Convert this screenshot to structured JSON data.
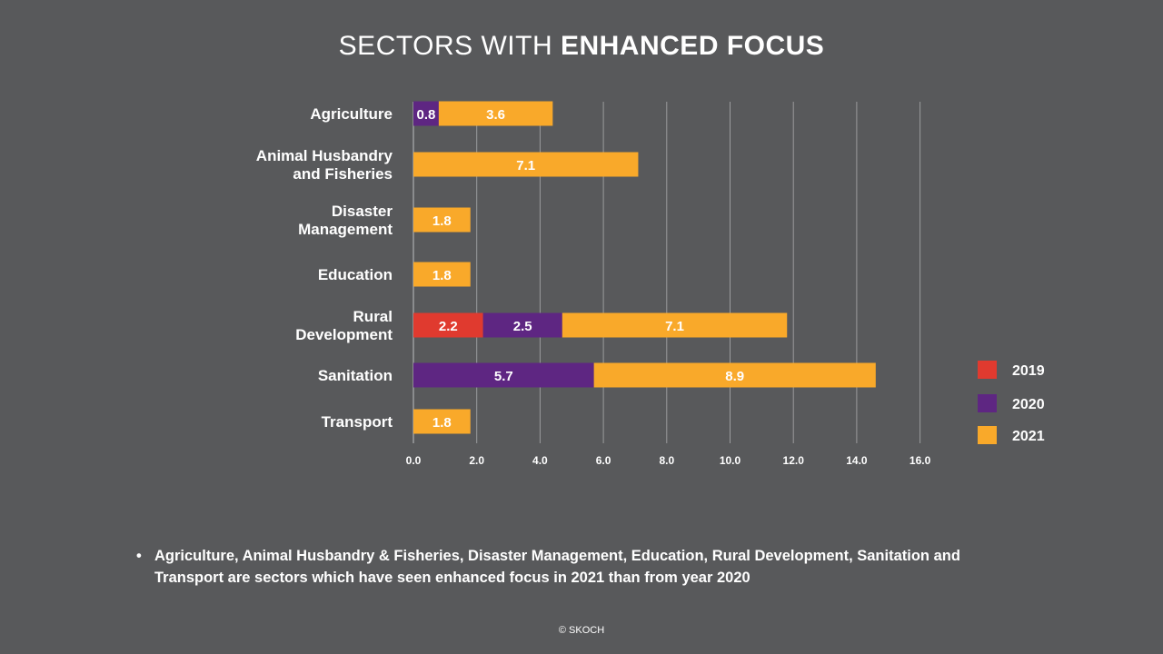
{
  "header": {
    "title_light": "SECTORS WITH ",
    "title_bold": "ENHANCED FOCUS"
  },
  "chart_data": {
    "type": "bar",
    "orientation": "horizontal",
    "stacked": true,
    "categories": [
      [
        "Agriculture"
      ],
      [
        "Animal Husbandry",
        "and Fisheries"
      ],
      [
        "Disaster",
        "Management"
      ],
      [
        "Education"
      ],
      [
        "Rural",
        "Development"
      ],
      [
        "Sanitation"
      ],
      [
        "Transport"
      ]
    ],
    "series": [
      {
        "name": "2019",
        "color": "#e03a2f",
        "values": [
          0,
          0,
          0,
          0,
          2.2,
          0,
          0
        ]
      },
      {
        "name": "2020",
        "color": "#5e2682",
        "values": [
          0.8,
          0,
          0,
          0,
          2.5,
          5.7,
          0
        ]
      },
      {
        "name": "2021",
        "color": "#f9a92a",
        "values": [
          3.6,
          7.1,
          1.8,
          1.8,
          7.1,
          8.9,
          1.8
        ]
      }
    ],
    "xlim": [
      0,
      16
    ],
    "xticks": [
      "0.0",
      "2.0",
      "4.0",
      "6.0",
      "8.0",
      "10.0",
      "12.0",
      "14.0",
      "16.0"
    ],
    "grid": "vertical",
    "legend": "right"
  },
  "note": {
    "bullet": "•",
    "text": "Agriculture, Animal Husbandry & Fisheries, Disaster Management, Education, Rural Development, Sanitation and Transport are sectors which have seen enhanced focus in 2021 than from year 2020"
  },
  "footer": {
    "text": "© SKOCH"
  }
}
